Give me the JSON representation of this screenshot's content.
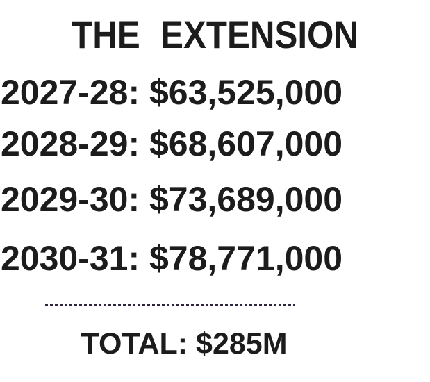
{
  "colors": {
    "bg": "#ffffff",
    "text": "#1c1c1c",
    "dot": "#2e2440"
  },
  "title": "THE EXTENSION",
  "rows": [
    {
      "period": "2027-28",
      "amount": "$63,525,000",
      "text": "2027-28: $63,525,000"
    },
    {
      "period": "2028-29",
      "amount": "$68,607,000",
      "text": "2028-29: $68,607,000"
    },
    {
      "period": "2029-30",
      "amount": "$73,689,000",
      "text": "2029-30: $73,689,000"
    },
    {
      "period": "2030-31",
      "amount": "$78,771,000",
      "text": "2030-31: $78,771,000"
    }
  ],
  "total": {
    "label": "TOTAL",
    "amount": "$285M",
    "text": "TOTAL: $285M"
  }
}
